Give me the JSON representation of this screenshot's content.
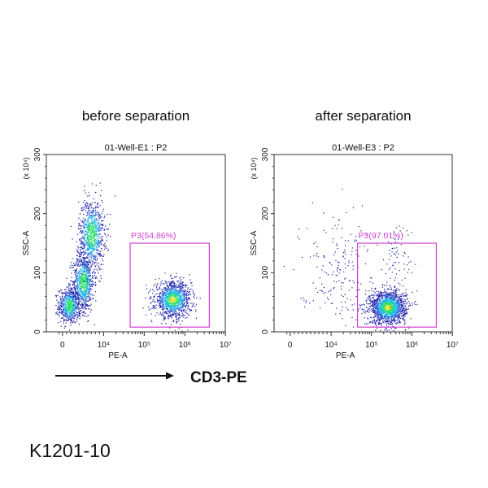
{
  "figure_label": "K1201-10",
  "axis_arrow_label": "CD3-PE",
  "colors": {
    "gate": "#d23fd2",
    "low_density": "#1a1aa8",
    "mid_density": "#19b9e8",
    "high_density": "#2ee06a",
    "peak_density": "#e6e632"
  },
  "chart_data": [
    {
      "type": "scatter",
      "title": "before separation",
      "subtitle": "01-Well-E1 : P2",
      "xlabel": "PE-A",
      "ylabel": "SSC-A",
      "yunit": "(x 10⁴)",
      "xscale": "biexponential",
      "xticks": [
        "0",
        "10⁴",
        "10⁵",
        "10⁶",
        "10⁷"
      ],
      "yticks": [
        "0",
        "100",
        "200",
        "300"
      ],
      "ylim": [
        0,
        300
      ],
      "xlim": [
        -1000,
        10000000
      ],
      "density_colored": true,
      "gate": {
        "name": "P3",
        "label": "P3(54.86%)",
        "percent": 54.86,
        "x_range": [
          45000,
          4000000
        ],
        "y_range": [
          8,
          150
        ]
      },
      "populations": [
        {
          "x_center": 1600,
          "y_center": 45,
          "y_spread": 15,
          "count": 700
        },
        {
          "x_center": 5000,
          "y_center": 85,
          "y_spread": 25,
          "count": 800
        },
        {
          "x_center": 7000,
          "y_center": 165,
          "y_spread": 30,
          "count": 900
        },
        {
          "x_center": 500000,
          "y_center": 55,
          "y_spread": 15,
          "count": 1200
        }
      ]
    },
    {
      "type": "scatter",
      "title": "after separation",
      "subtitle": "01-Well-E3 : P2",
      "xlabel": "PE-A",
      "ylabel": "SSC-A",
      "yunit": "(x 10⁴)",
      "xscale": "biexponential",
      "xticks": [
        "0",
        "10⁴",
        "10⁵",
        "10⁶",
        "10⁷"
      ],
      "yticks": [
        "0",
        "100",
        "200",
        "300"
      ],
      "ylim": [
        0,
        300
      ],
      "xlim": [
        -1000,
        10000000
      ],
      "density_colored": true,
      "gate": {
        "name": "P3",
        "label": "P3(97.01%)",
        "percent": 97.01,
        "x_range": [
          45000,
          4000000
        ],
        "y_range": [
          8,
          150
        ]
      },
      "populations": [
        {
          "x_center": 250000,
          "y_center": 42,
          "y_spread": 14,
          "count": 1600
        },
        {
          "x_center": 15000,
          "y_center": 110,
          "y_spread": 45,
          "count": 200
        },
        {
          "x_center": 400000,
          "y_center": 120,
          "y_spread": 40,
          "count": 80
        }
      ]
    }
  ]
}
